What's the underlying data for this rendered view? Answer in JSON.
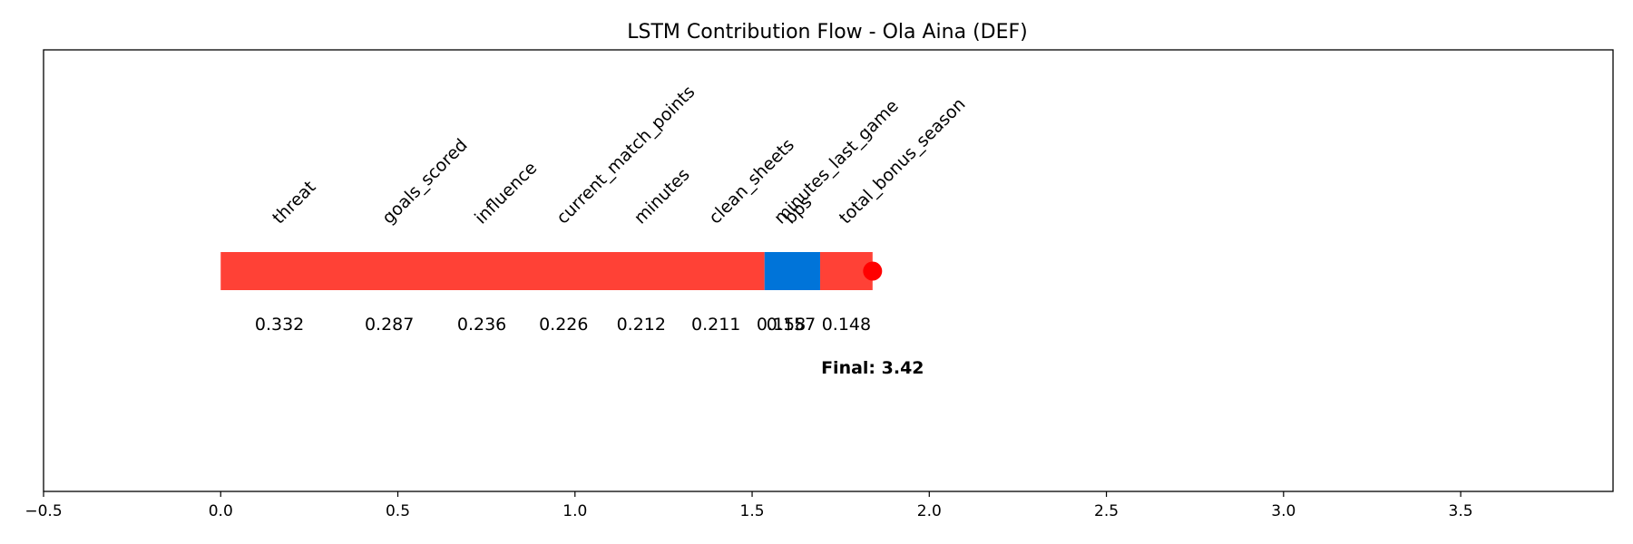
{
  "chart_data": {
    "type": "bar",
    "title": "LSTM Contribution Flow - Ola Aina (DEF)",
    "xlabel": "",
    "ylabel": "",
    "xlim": [
      -0.5,
      3.93
    ],
    "xticks": [
      "−0.5",
      "0.0",
      "0.5",
      "1.0",
      "1.5",
      "2.0",
      "2.5",
      "3.0",
      "3.5"
    ],
    "xtick_values": [
      -0.5,
      0.0,
      0.5,
      1.0,
      1.5,
      2.0,
      2.5,
      3.0,
      3.5
    ],
    "grid": false,
    "segments_colors": {
      "positive": "#ff4136",
      "negative": "#0074d9",
      "endpoint": "#ff0000"
    },
    "bar_segments": [
      {
        "start": 0.0,
        "end": 1.535,
        "sign": "positive"
      },
      {
        "start": 1.535,
        "end": 1.692,
        "sign": "negative"
      },
      {
        "start": 1.692,
        "end": 1.84,
        "sign": "positive"
      }
    ],
    "features": [
      {
        "name": "threat",
        "value": "0.332",
        "x": 0.166
      },
      {
        "name": "goals_scored",
        "value": "0.287",
        "x": 0.476
      },
      {
        "name": "influence",
        "value": "0.236",
        "x": 0.737
      },
      {
        "name": "current_match_points",
        "value": "0.226",
        "x": 0.968
      },
      {
        "name": "minutes",
        "value": "0.212",
        "x": 1.187
      },
      {
        "name": "clean_sheets",
        "value": "0.211",
        "x": 1.398
      },
      {
        "name": "minutes_last_game",
        "value": "0.158",
        "x": 1.582
      },
      {
        "name": "bps",
        "value": "0.157",
        "x": 1.61
      },
      {
        "name": "total_bonus_season",
        "value": "0.148",
        "x": 1.766
      }
    ],
    "endpoint_x": 1.84,
    "final_label": "Final: 3.42"
  }
}
